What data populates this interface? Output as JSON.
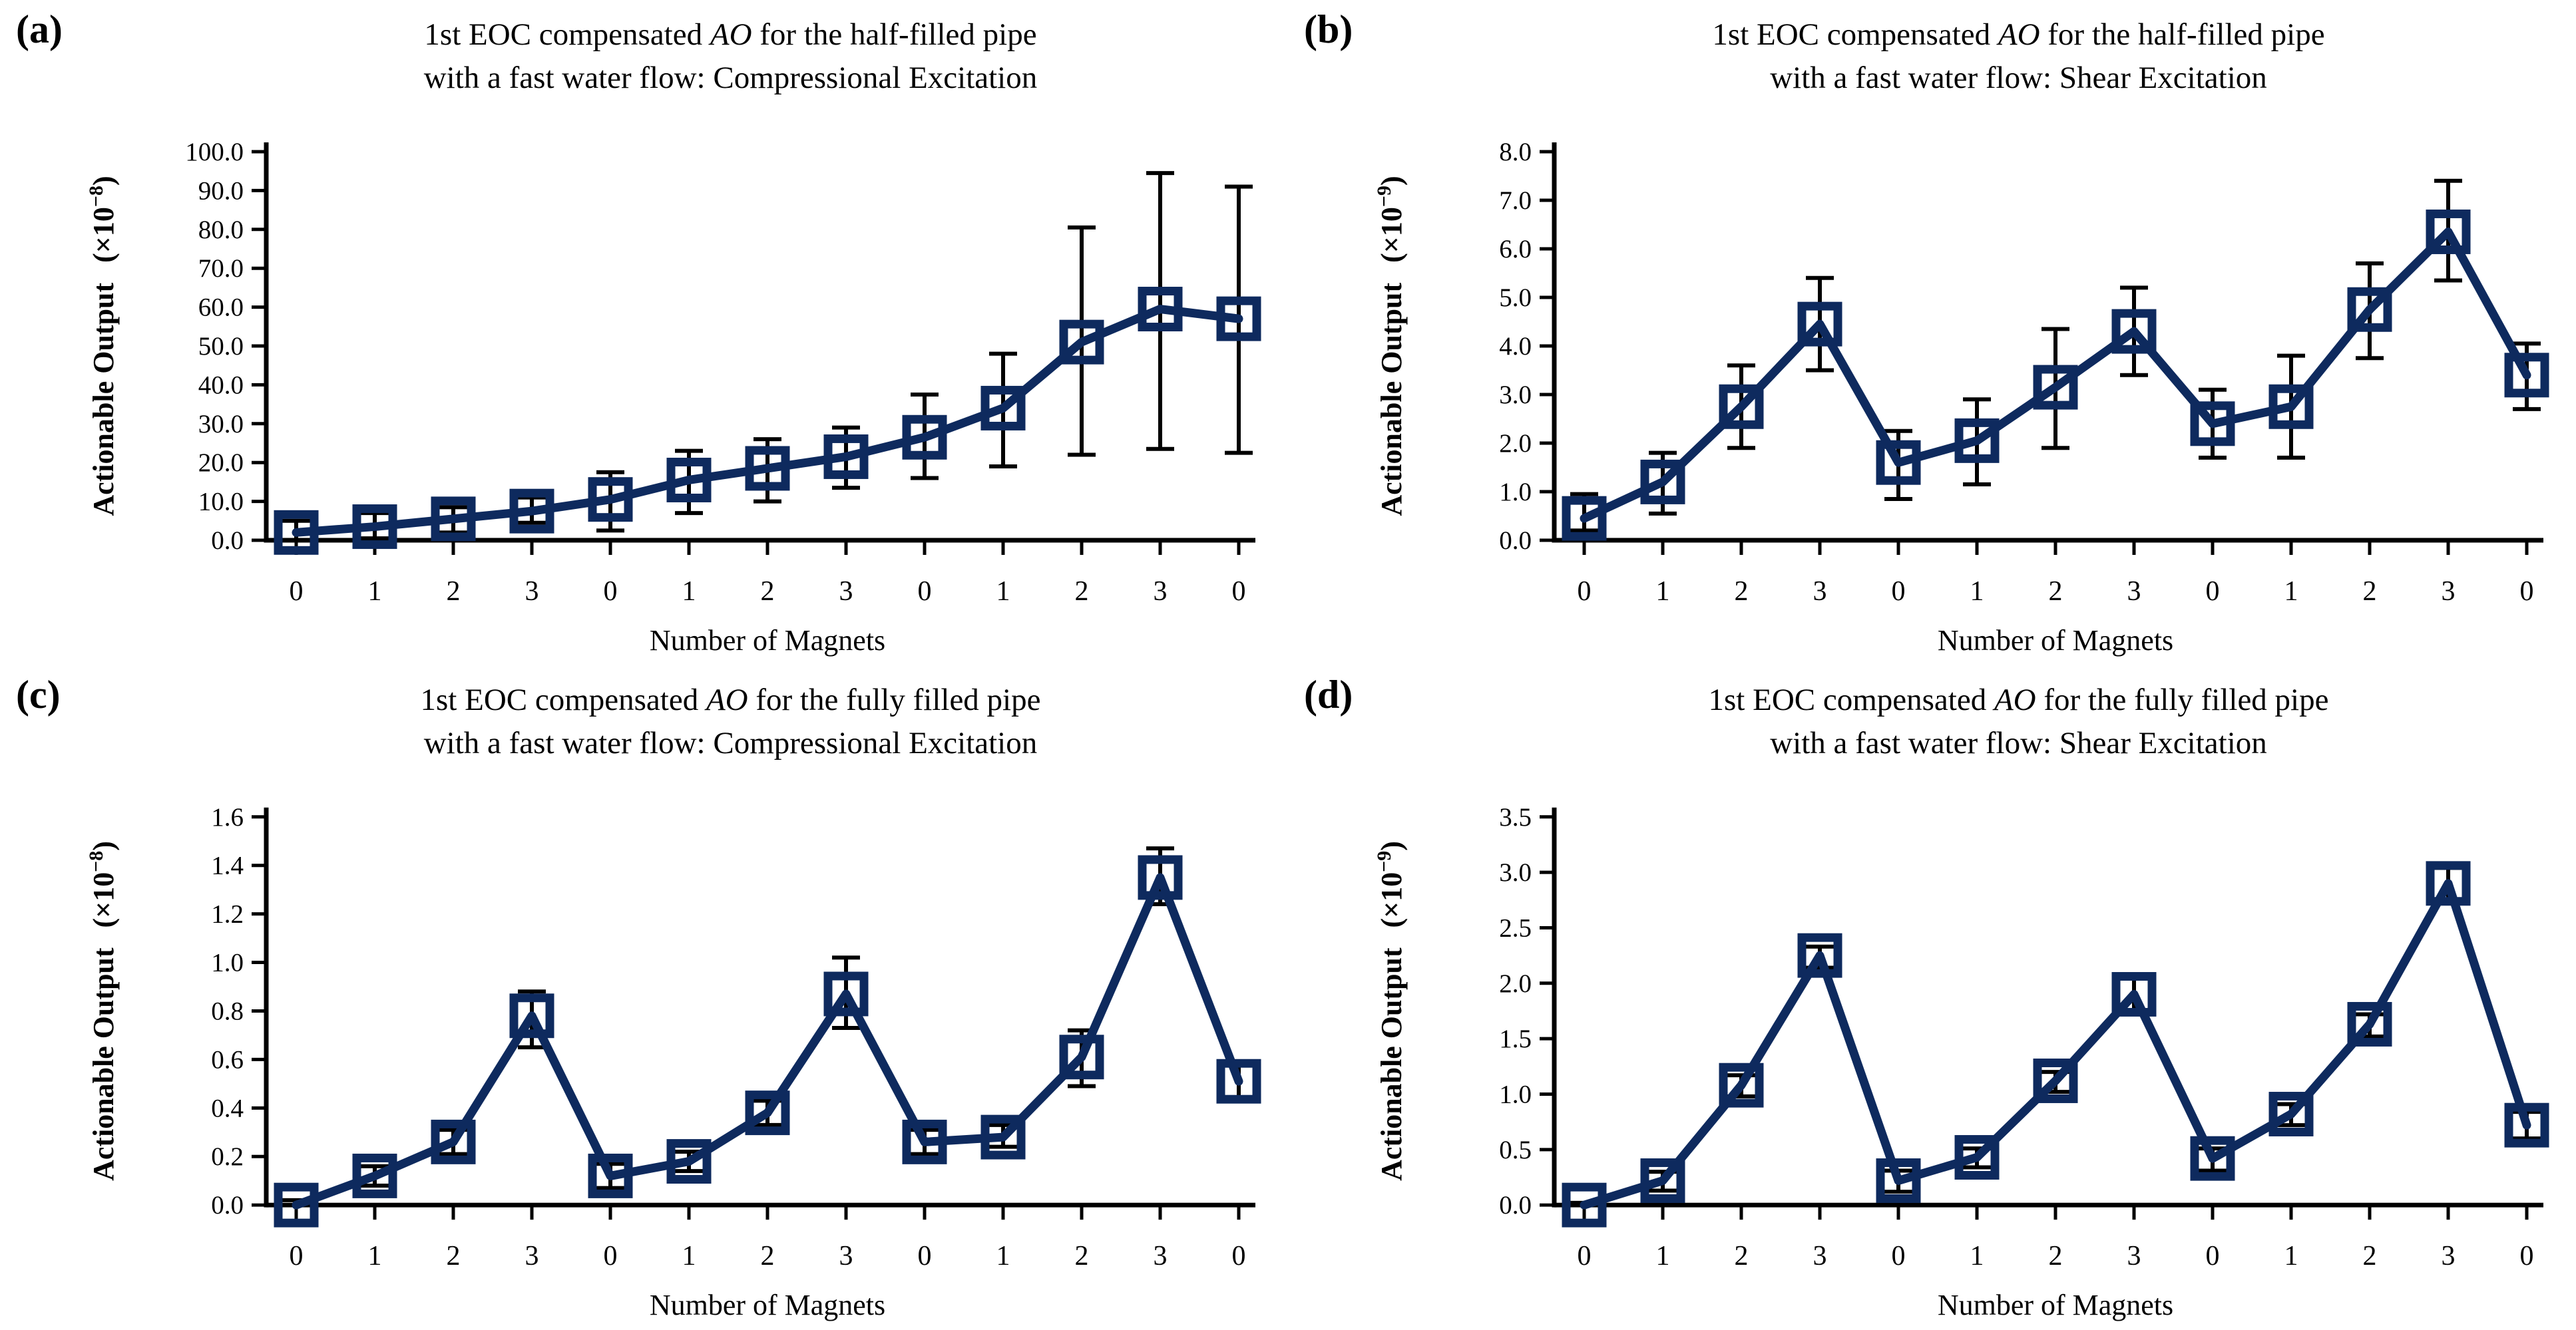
{
  "figure": {
    "line_color": "#0e2a5e",
    "error_color": "#000000",
    "background": "#ffffff",
    "marker_shape": "open-square"
  },
  "chart_data": [
    {
      "type": "line",
      "panel_label": "(a)",
      "title": {
        "pre": "1st EOC compensated ",
        "italic": "AO",
        "post": " for the half-filled pipe",
        "line2": "with a fast water flow: Compressional Excitation"
      },
      "xlabel": "Number of Magnets",
      "ylabel": {
        "text": "Actionable Output",
        "scale_prefix": "(×10",
        "scale_exp": "−8",
        "scale_suffix": ")"
      },
      "ylim": [
        0,
        100
      ],
      "y_ticks": [
        "0.0",
        "10.0",
        "20.0",
        "30.0",
        "40.0",
        "50.0",
        "60.0",
        "70.0",
        "80.0",
        "90.0",
        "100.0"
      ],
      "categories": [
        "0",
        "1",
        "2",
        "3",
        "0",
        "1",
        "2",
        "3",
        "0",
        "1",
        "2",
        "3",
        "0"
      ],
      "values": [
        2.0,
        3.5,
        5.5,
        7.5,
        10.5,
        15.5,
        18.5,
        21.5,
        26.5,
        34.0,
        51.0,
        59.5,
        57.0
      ],
      "err_low": [
        0.0,
        0.5,
        2.0,
        4.5,
        2.5,
        7.0,
        10.0,
        13.5,
        16.0,
        19.0,
        22.0,
        23.5,
        22.5
      ],
      "err_high": [
        5.0,
        7.0,
        8.5,
        11.0,
        17.5,
        23.0,
        26.0,
        29.0,
        37.5,
        48.0,
        80.5,
        94.5,
        91.0
      ],
      "grid": "off",
      "legend": "none"
    },
    {
      "type": "line",
      "panel_label": "(b)",
      "title": {
        "pre": "1st EOC compensated ",
        "italic": "AO",
        "post": " for the half-filled pipe",
        "line2": "with a fast water flow: Shear Excitation"
      },
      "xlabel": "Number of Magnets",
      "ylabel": {
        "text": "Actionable Output",
        "scale_prefix": "(×10",
        "scale_exp": "−9",
        "scale_suffix": ")"
      },
      "ylim": [
        0,
        8
      ],
      "y_ticks": [
        "0.0",
        "1.0",
        "2.0",
        "3.0",
        "4.0",
        "5.0",
        "6.0",
        "7.0",
        "8.0"
      ],
      "categories": [
        "0",
        "1",
        "2",
        "3",
        "0",
        "1",
        "2",
        "3",
        "0",
        "1",
        "2",
        "3",
        "0"
      ],
      "values": [
        0.45,
        1.2,
        2.75,
        4.45,
        1.6,
        2.05,
        3.15,
        4.3,
        2.4,
        2.75,
        4.75,
        6.35,
        3.4
      ],
      "err_low": [
        0.2,
        0.55,
        1.9,
        3.5,
        0.85,
        1.15,
        1.9,
        3.4,
        1.7,
        1.7,
        3.75,
        5.35,
        2.7
      ],
      "err_high": [
        0.95,
        1.8,
        3.6,
        5.4,
        2.25,
        2.9,
        4.35,
        5.2,
        3.1,
        3.8,
        5.7,
        7.4,
        4.05
      ],
      "grid": "off",
      "legend": "none"
    },
    {
      "type": "line",
      "panel_label": "(c)",
      "title": {
        "pre": "1st EOC compensated ",
        "italic": "AO",
        "post": " for the fully filled pipe",
        "line2": "with a fast water flow: Compressional Excitation"
      },
      "xlabel": "Number of Magnets",
      "ylabel": {
        "text": "Actionable Output",
        "scale_prefix": "(×10",
        "scale_exp": "−8",
        "scale_suffix": ")"
      },
      "ylim": [
        0,
        1.6
      ],
      "y_ticks": [
        "0.0",
        "0.2",
        "0.4",
        "0.6",
        "0.8",
        "1.0",
        "1.2",
        "1.4",
        "1.6"
      ],
      "categories": [
        "0",
        "1",
        "2",
        "3",
        "0",
        "1",
        "2",
        "3",
        "0",
        "1",
        "2",
        "3",
        "0"
      ],
      "values": [
        0.0,
        0.12,
        0.26,
        0.78,
        0.12,
        0.18,
        0.38,
        0.87,
        0.26,
        0.28,
        0.61,
        1.35,
        0.51
      ],
      "err_low": [
        0.0,
        0.08,
        0.21,
        0.65,
        0.07,
        0.14,
        0.33,
        0.73,
        0.21,
        0.24,
        0.49,
        1.24,
        0.44
      ],
      "err_high": [
        0.02,
        0.16,
        0.31,
        0.88,
        0.17,
        0.22,
        0.43,
        1.02,
        0.31,
        0.33,
        0.72,
        1.47,
        0.58
      ],
      "grid": "off",
      "legend": "none"
    },
    {
      "type": "line",
      "panel_label": "(d)",
      "title": {
        "pre": "1st EOC compensated ",
        "italic": "AO",
        "post": " for the fully filled pipe",
        "line2": "with a fast water flow: Shear Excitation"
      },
      "xlabel": "Number of Magnets",
      "ylabel": {
        "text": "Actionable Output",
        "scale_prefix": "(×10",
        "scale_exp": "−9",
        "scale_suffix": ")"
      },
      "ylim": [
        0,
        3.5
      ],
      "y_ticks": [
        "0.0",
        "0.5",
        "1.0",
        "1.5",
        "2.0",
        "2.5",
        "3.0",
        "3.5"
      ],
      "categories": [
        "0",
        "1",
        "2",
        "3",
        "0",
        "1",
        "2",
        "3",
        "0",
        "1",
        "2",
        "3",
        "0"
      ],
      "values": [
        0.0,
        0.22,
        1.08,
        2.25,
        0.22,
        0.43,
        1.12,
        1.9,
        0.42,
        0.82,
        1.63,
        2.9,
        0.72
      ],
      "err_low": [
        0.0,
        0.13,
        0.98,
        2.14,
        0.12,
        0.34,
        1.02,
        1.73,
        0.31,
        0.72,
        1.52,
        2.72,
        0.6
      ],
      "err_high": [
        0.02,
        0.3,
        1.17,
        2.33,
        0.31,
        0.51,
        1.2,
        2.06,
        0.51,
        0.91,
        1.72,
        3.04,
        0.84
      ],
      "grid": "off",
      "legend": "none"
    }
  ]
}
